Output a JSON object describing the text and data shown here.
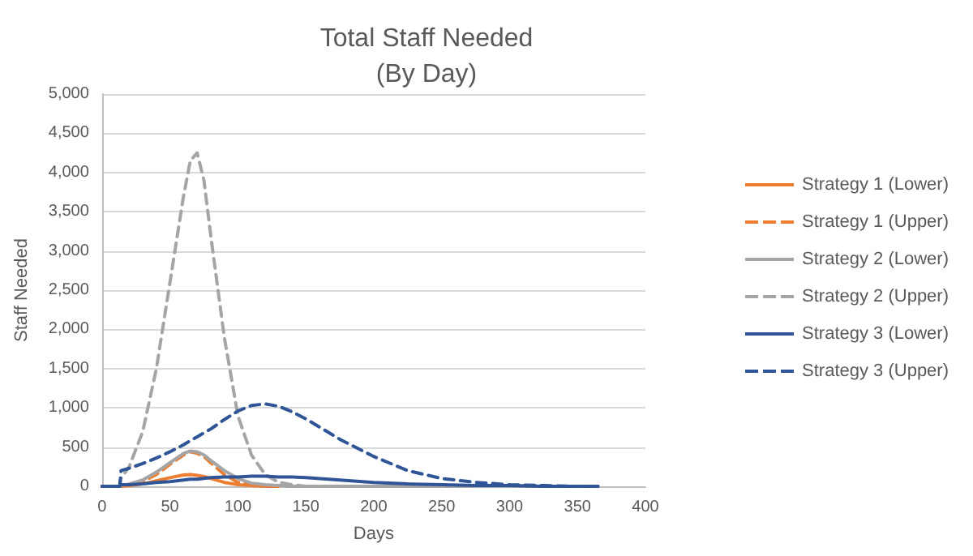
{
  "chart_data": {
    "type": "line",
    "title": "Total Staff Needed\n(By Day)",
    "xlabel": "Days",
    "ylabel": "Staff Needed",
    "x": [
      0,
      13,
      14,
      20,
      30,
      40,
      50,
      60,
      65,
      70,
      75,
      80,
      90,
      100,
      110,
      120,
      130,
      140,
      150,
      175,
      200,
      225,
      250,
      275,
      300,
      325,
      350,
      365
    ],
    "series": [
      {
        "name": "Strategy 1 (Lower)",
        "color": "#ed7d31",
        "line_style": "solid",
        "x": [
          0,
          13,
          14,
          20,
          30,
          40,
          50,
          60,
          65,
          70,
          75,
          80,
          90,
          100,
          110,
          120,
          130
        ],
        "values": [
          0,
          0,
          0,
          10,
          30,
          70,
          110,
          145,
          150,
          140,
          125,
          100,
          50,
          20,
          10,
          0,
          0
        ]
      },
      {
        "name": "Strategy 1 (Upper)",
        "color": "#ed7d31",
        "line_style": "dashed",
        "x": [
          0,
          13,
          14,
          20,
          30,
          40,
          50,
          60,
          65,
          70,
          75,
          80,
          90,
          100,
          110,
          120,
          130
        ],
        "values": [
          0,
          0,
          0,
          20,
          60,
          150,
          280,
          400,
          440,
          420,
          380,
          300,
          150,
          50,
          20,
          10,
          0
        ]
      },
      {
        "name": "Strategy 2 (Lower)",
        "color": "#a5a5a5",
        "line_style": "solid",
        "values": [
          0,
          0,
          10,
          30,
          80,
          180,
          300,
          420,
          450,
          440,
          400,
          330,
          200,
          100,
          40,
          20,
          10,
          0,
          0,
          0,
          0,
          0,
          0,
          0,
          0,
          0,
          0,
          0
        ]
      },
      {
        "name": "Strategy 2 (Upper)",
        "color": "#a5a5a5",
        "line_style": "dashed",
        "values": [
          0,
          0,
          100,
          250,
          700,
          1500,
          2600,
          3700,
          4150,
          4250,
          3900,
          3200,
          1900,
          900,
          400,
          150,
          50,
          20,
          0,
          0,
          0,
          0,
          0,
          0,
          0,
          0,
          0,
          0
        ]
      },
      {
        "name": "Strategy 3 (Lower)",
        "color": "#2f5597",
        "line_style": "solid",
        "values": [
          0,
          0,
          20,
          20,
          30,
          50,
          60,
          80,
          90,
          90,
          100,
          110,
          120,
          120,
          130,
          130,
          120,
          120,
          110,
          80,
          50,
          30,
          20,
          10,
          10,
          0,
          0,
          0
        ]
      },
      {
        "name": "Strategy 3 (Upper)",
        "color": "#2f5597",
        "line_style": "dashed",
        "values": [
          0,
          0,
          200,
          230,
          290,
          360,
          440,
          530,
          580,
          630,
          680,
          730,
          850,
          960,
          1030,
          1050,
          1020,
          950,
          860,
          600,
          380,
          200,
          100,
          50,
          20,
          10,
          0,
          0
        ]
      }
    ],
    "xlim": [
      0,
      400
    ],
    "xticks": [
      0,
      50,
      100,
      150,
      200,
      250,
      300,
      350,
      400
    ],
    "ylim": [
      0,
      5000
    ],
    "yticks": [
      {
        "value": 0,
        "label": "0"
      },
      {
        "value": 500,
        "label": "500"
      },
      {
        "value": 1000,
        "label": "1,000"
      },
      {
        "value": 1500,
        "label": "1,500"
      },
      {
        "value": 2000,
        "label": "2,000"
      },
      {
        "value": 2500,
        "label": "2,500"
      },
      {
        "value": 3000,
        "label": "3,000"
      },
      {
        "value": 3500,
        "label": "3,500"
      },
      {
        "value": 4000,
        "label": "4,000"
      },
      {
        "value": 4500,
        "label": "4,500"
      },
      {
        "value": 5000,
        "label": "5,000"
      }
    ],
    "grid": "y",
    "legend": "right",
    "marker": "none"
  }
}
